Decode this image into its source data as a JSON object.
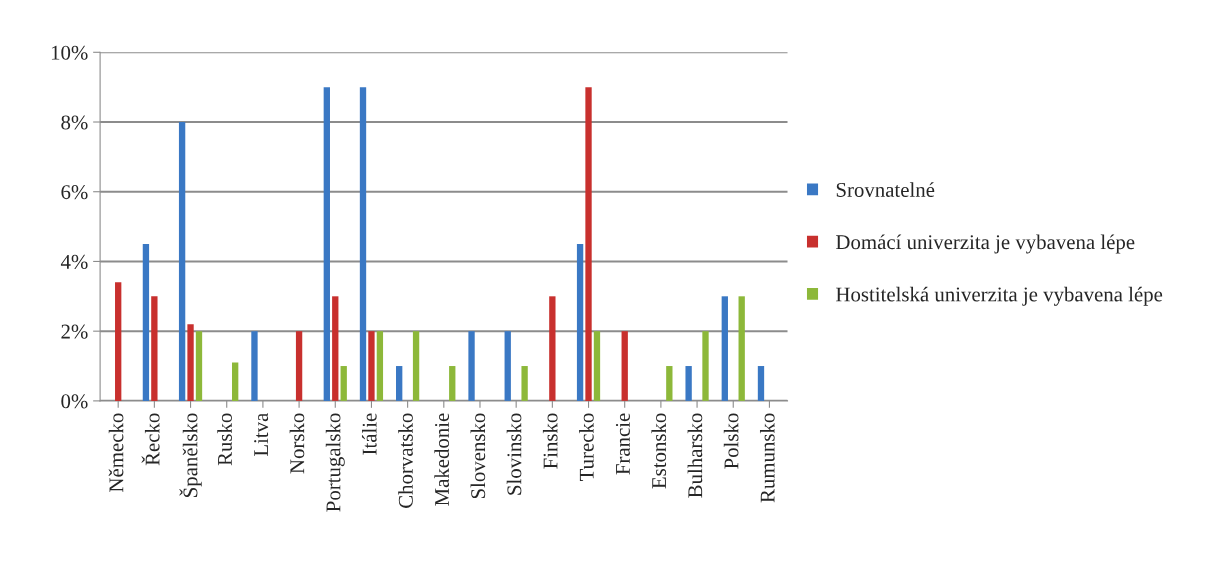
{
  "chart_data": {
    "type": "bar",
    "categories": [
      "Německo",
      "Řecko",
      "Španělsko",
      "Rusko",
      "Litva",
      "Norsko",
      "Portugalsko",
      "Itálie",
      "Chorvatsko",
      "Makedonie",
      "Slovensko",
      "Slovinsko",
      "Finsko",
      "Turecko",
      "Francie",
      "Estonsko",
      "Bulharsko",
      "Polsko",
      "Rumunsko"
    ],
    "series": [
      {
        "name": "Srovnatelné",
        "color": "#3a78c4",
        "values": [
          0,
          4.5,
          8,
          0,
          2,
          0,
          9,
          9,
          1,
          0,
          2,
          2,
          0,
          4.5,
          0,
          0,
          1,
          3,
          1
        ]
      },
      {
        "name": "Domácí univerzita je vybavena lépe",
        "color": "#c8302e",
        "values": [
          3.4,
          3,
          2.2,
          0,
          0,
          2,
          3,
          2,
          0,
          0,
          0,
          0,
          3,
          9,
          2,
          0,
          0,
          0,
          0
        ]
      },
      {
        "name": "Hostitelská univerzita je vybavena lépe",
        "color": "#8db83a",
        "values": [
          0,
          0,
          2,
          1.1,
          0,
          0,
          1,
          2,
          2,
          1,
          0,
          1,
          0,
          2,
          0,
          1,
          2,
          3,
          0
        ]
      }
    ],
    "ylim": [
      0,
      10
    ],
    "yticks": [
      {
        "value": 0,
        "label": "0%"
      },
      {
        "value": 2,
        "label": "2%"
      },
      {
        "value": 4,
        "label": "4%"
      },
      {
        "value": 6,
        "label": "6%"
      },
      {
        "value": 8,
        "label": "8%"
      },
      {
        "value": 10,
        "label": "10%"
      }
    ],
    "grid": "y",
    "legend": "right"
  }
}
